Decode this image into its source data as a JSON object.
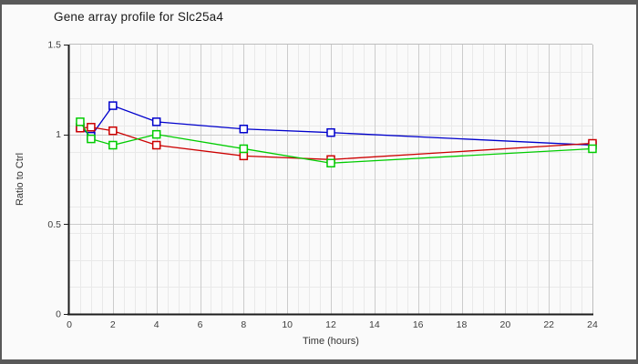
{
  "window": {
    "background": "#fafafa",
    "frame_color": "#595959"
  },
  "chart_data": {
    "type": "line",
    "title": "Gene array profile for Slc25a4",
    "xlabel": "Time (hours)",
    "ylabel": "Ratio to Ctrl",
    "xlim": [
      0,
      24
    ],
    "ylim": [
      0,
      1.5
    ],
    "x_ticks": [
      0,
      2,
      4,
      6,
      8,
      10,
      12,
      14,
      16,
      18,
      20,
      22,
      24
    ],
    "y_ticks": [
      0,
      0.5,
      1,
      1.5
    ],
    "y_tick_labels": [
      "0",
      "0.5",
      "1",
      "1.5"
    ],
    "grid": "on",
    "legend": "none",
    "marker": "open-square",
    "x": [
      0.5,
      1,
      2,
      4,
      8,
      12,
      24
    ],
    "series": [
      {
        "name": "blue-series",
        "color": "#0000cc",
        "values": [
          1.04,
          0.99,
          1.16,
          1.07,
          1.03,
          1.01,
          0.94
        ]
      },
      {
        "name": "red-series",
        "color": "#cc0000",
        "values": [
          1.035,
          1.04,
          1.02,
          0.94,
          0.88,
          0.86,
          0.95
        ]
      },
      {
        "name": "green-series",
        "color": "#00cc00",
        "values": [
          1.07,
          0.975,
          0.94,
          1.0,
          0.92,
          0.84,
          0.92
        ]
      }
    ],
    "colors": {
      "minor_grid": "#e9e9e9",
      "major_grid": "#cccccc",
      "axis": "#1c1c1c",
      "plot_border": "#bdbdbd",
      "tick_label": "#3d3d3d"
    }
  }
}
